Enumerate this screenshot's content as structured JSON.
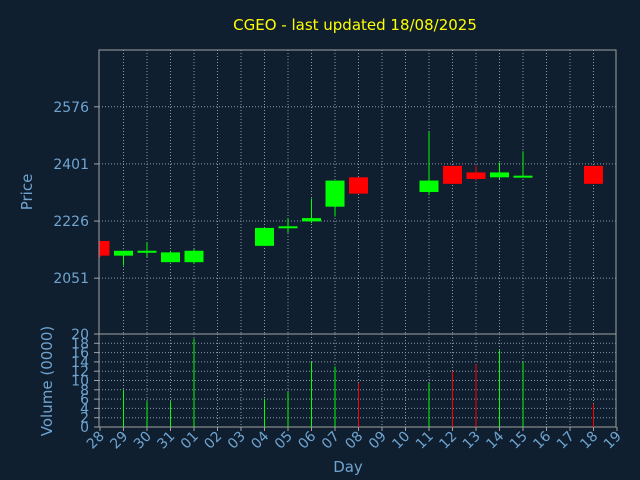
{
  "chart_data": {
    "type": "candlestick",
    "title": "CGEO - last updated 18/08/2025",
    "price_axis": {
      "label": "Price",
      "ticks": [
        2051,
        2226,
        2401,
        2576
      ],
      "range": [
        1880,
        2750
      ]
    },
    "volume_axis": {
      "label": "Volume (0000)",
      "ticks": [
        0,
        2,
        4,
        6,
        8,
        10,
        12,
        14,
        16,
        18,
        20
      ],
      "range": [
        0,
        20
      ]
    },
    "x_axis": {
      "label": "Day",
      "ticks": [
        "28",
        "29",
        "30",
        "31",
        "01",
        "02",
        "03",
        "04",
        "05",
        "06",
        "07",
        "08",
        "09",
        "10",
        "11",
        "12",
        "13",
        "14",
        "15",
        "16",
        "17",
        "18",
        "19"
      ]
    },
    "grid": true,
    "colors": {
      "up": "#00ff00",
      "down": "#ff0000",
      "background": "#0f1f30",
      "title": "#ffff00",
      "text": "#6fa4d0",
      "frame": "#a0a0a0",
      "grid": "#8a9aaa"
    },
    "candles": [
      {
        "day": "28",
        "open": 2165,
        "high": 2165,
        "low": 2115,
        "close": 2120
      },
      {
        "day": "29",
        "open": 2120,
        "high": 2135,
        "low": 2090,
        "close": 2135
      },
      {
        "day": "30",
        "open": 2130,
        "high": 2160,
        "low": 2115,
        "close": 2135
      },
      {
        "day": "31",
        "open": 2100,
        "high": 2135,
        "low": 2100,
        "close": 2130
      },
      {
        "day": "01",
        "open": 2100,
        "high": 2140,
        "low": 2095,
        "close": 2135
      },
      {
        "day": "04",
        "open": 2150,
        "high": 2205,
        "low": 2150,
        "close": 2205
      },
      {
        "day": "05",
        "open": 2205,
        "high": 2235,
        "low": 2190,
        "close": 2210
      },
      {
        "day": "06",
        "open": 2225,
        "high": 2295,
        "low": 2220,
        "close": 2235
      },
      {
        "day": "07",
        "open": 2270,
        "high": 2350,
        "low": 2240,
        "close": 2350
      },
      {
        "day": "08",
        "open": 2360,
        "high": 2360,
        "low": 2310,
        "close": 2310
      },
      {
        "day": "11",
        "open": 2315,
        "high": 2500,
        "low": 2305,
        "close": 2350
      },
      {
        "day": "12",
        "open": 2395,
        "high": 2395,
        "low": 2340,
        "close": 2340
      },
      {
        "day": "13",
        "open": 2375,
        "high": 2395,
        "low": 2350,
        "close": 2355
      },
      {
        "day": "14",
        "open": 2360,
        "high": 2405,
        "low": 2355,
        "close": 2375
      },
      {
        "day": "15",
        "open": 2360,
        "high": 2440,
        "low": 2360,
        "close": 2365
      },
      {
        "day": "18",
        "open": 2395,
        "high": 2395,
        "low": 2340,
        "close": 2340
      }
    ],
    "volume": [
      {
        "day": "29",
        "value": 8,
        "direction": "up"
      },
      {
        "day": "30",
        "value": 5.5,
        "direction": "up"
      },
      {
        "day": "31",
        "value": 5.5,
        "direction": "up"
      },
      {
        "day": "01",
        "value": 19,
        "direction": "up"
      },
      {
        "day": "04",
        "value": 6,
        "direction": "up"
      },
      {
        "day": "05",
        "value": 7.5,
        "direction": "up"
      },
      {
        "day": "06",
        "value": 14,
        "direction": "up"
      },
      {
        "day": "07",
        "value": 13,
        "direction": "up"
      },
      {
        "day": "08",
        "value": 9.5,
        "direction": "down"
      },
      {
        "day": "11",
        "value": 9.5,
        "direction": "up"
      },
      {
        "day": "12",
        "value": 12,
        "direction": "down"
      },
      {
        "day": "13",
        "value": 13.5,
        "direction": "down"
      },
      {
        "day": "14",
        "value": 16.5,
        "direction": "up"
      },
      {
        "day": "15",
        "value": 14,
        "direction": "up"
      },
      {
        "day": "18",
        "value": 5,
        "direction": "down"
      }
    ]
  }
}
